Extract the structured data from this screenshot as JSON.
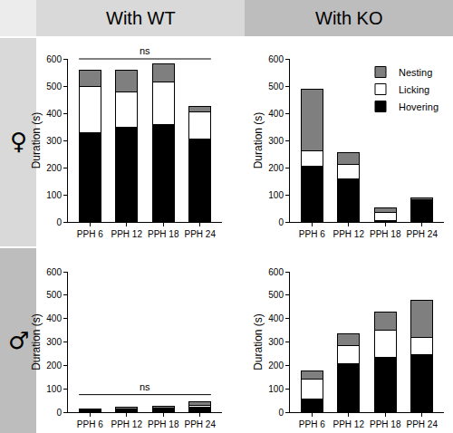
{
  "column_headers": [
    "With WT",
    "With KO"
  ],
  "row_headers": [
    "♀",
    "♂"
  ],
  "chart_data": [
    {
      "type": "bar",
      "stacked": true,
      "y_label": "Duration (s)",
      "categories": [
        "PPH 6",
        "PPH 12",
        "PPH 18",
        "PPH 24"
      ],
      "ylim": [
        0,
        600
      ],
      "yticks": [
        0,
        100,
        200,
        300,
        400,
        500,
        600
      ],
      "series": [
        {
          "name": "Hovering",
          "color": "#000000",
          "values": [
            328,
            350,
            360,
            305
          ]
        },
        {
          "name": "Licking",
          "color": "#ffffff",
          "values": [
            170,
            127,
            155,
            100
          ]
        },
        {
          "name": "Nesting",
          "color": "#7f7f7f",
          "values": [
            62,
            83,
            67,
            20
          ]
        }
      ],
      "annotations": [
        {
          "text": "ns",
          "from": "PPH 6",
          "to": "PPH 24"
        }
      ]
    },
    {
      "type": "bar",
      "stacked": true,
      "y_label": "Duration (s)",
      "legend": "top right",
      "categories": [
        "PPH 6",
        "PPH 12",
        "PPH 18",
        "PPH 24"
      ],
      "ylim": [
        0,
        600
      ],
      "yticks": [
        0,
        100,
        200,
        300,
        400,
        500,
        600
      ],
      "series": [
        {
          "name": "Hovering",
          "color": "#000000",
          "values": [
            205,
            160,
            5,
            78
          ]
        },
        {
          "name": "Licking",
          "color": "#ffffff",
          "values": [
            57,
            52,
            30,
            5
          ]
        },
        {
          "name": "Nesting",
          "color": "#7f7f7f",
          "values": [
            228,
            43,
            17,
            5
          ]
        }
      ]
    },
    {
      "type": "bar",
      "stacked": true,
      "y_label": "Duration (s)",
      "categories": [
        "PPH 6",
        "PPH 12",
        "PPH 18",
        "PPH 24"
      ],
      "ylim": [
        0,
        600
      ],
      "yticks": [
        0,
        100,
        200,
        300,
        400,
        500,
        600
      ],
      "series": [
        {
          "name": "Hovering",
          "color": "#000000",
          "values": [
            8,
            12,
            15,
            20
          ]
        },
        {
          "name": "Licking",
          "color": "#ffffff",
          "values": [
            2,
            3,
            3,
            10
          ]
        },
        {
          "name": "Nesting",
          "color": "#7f7f7f",
          "values": [
            4,
            5,
            6,
            15
          ]
        }
      ],
      "annotations": [
        {
          "text": "ns",
          "from": "PPH 6",
          "to": "PPH 24"
        }
      ]
    },
    {
      "type": "bar",
      "stacked": true,
      "y_label": "Duration (s)",
      "categories": [
        "PPH 6",
        "PPH 12",
        "PPH 18",
        "PPH 24"
      ],
      "ylim": [
        0,
        600
      ],
      "yticks": [
        0,
        100,
        200,
        300,
        400,
        500,
        600
      ],
      "series": [
        {
          "name": "Hovering",
          "color": "#000000",
          "values": [
            57,
            208,
            235,
            245
          ]
        },
        {
          "name": "Licking",
          "color": "#ffffff",
          "values": [
            83,
            75,
            117,
            73
          ]
        },
        {
          "name": "Nesting",
          "color": "#7f7f7f",
          "values": [
            35,
            52,
            76,
            162
          ]
        }
      ]
    }
  ]
}
